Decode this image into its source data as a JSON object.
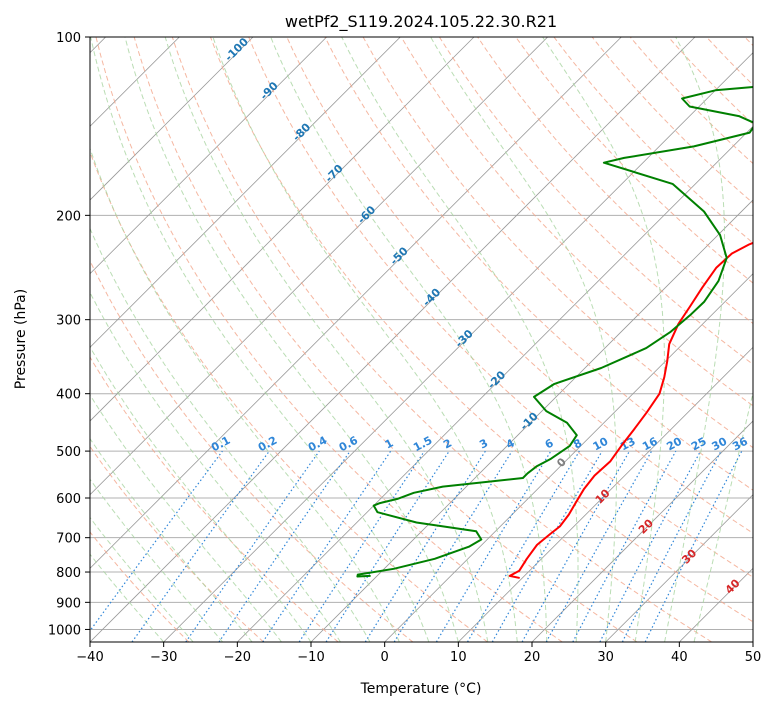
{
  "chart_data": {
    "type": "line",
    "title": "wetPf2_S119.2024.105.22.30.R21",
    "xlabel": "Temperature (°C)",
    "ylabel": "Pressure (hPa)",
    "xlim": [
      -40,
      50
    ],
    "ylim": [
      1050,
      100
    ],
    "y_scale": "log",
    "grid": true,
    "x_ticks": [
      -40,
      -30,
      -20,
      -10,
      0,
      10,
      20,
      30,
      40,
      50
    ],
    "x_tick_labels": [
      "−40",
      "−30",
      "−20",
      "−10",
      "0",
      "10",
      "20",
      "30",
      "40",
      "50"
    ],
    "y_ticks": [
      100,
      200,
      300,
      400,
      500,
      600,
      700,
      800,
      900,
      1000
    ],
    "y_tick_labels": [
      "100",
      "200",
      "300",
      "400",
      "500",
      "600",
      "700",
      "800",
      "900",
      "1000"
    ],
    "series": [
      {
        "role": "temperature",
        "color": "#ff0000",
        "points": [
          [
            9.5,
            818
          ],
          [
            8.0,
            812
          ],
          [
            8.6,
            796
          ],
          [
            8.0,
            760
          ],
          [
            7.5,
            720
          ],
          [
            7.8,
            690
          ],
          [
            8.1,
            670
          ],
          [
            7.7,
            640
          ],
          [
            7.0,
            610
          ],
          [
            6.3,
            580
          ],
          [
            5.9,
            550
          ],
          [
            6.1,
            520
          ],
          [
            5.5,
            490
          ],
          [
            5.0,
            460
          ],
          [
            4.4,
            430
          ],
          [
            3.6,
            400
          ],
          [
            2.0,
            375
          ],
          [
            0.2,
            352
          ],
          [
            -1.8,
            330
          ],
          [
            -3.3,
            305
          ],
          [
            -4.1,
            285
          ],
          [
            -5.0,
            265
          ],
          [
            -5.8,
            245
          ],
          [
            -5.6,
            232
          ],
          [
            -4.5,
            224
          ],
          [
            -2.4,
            215
          ],
          [
            -1.6,
            208
          ],
          [
            -0.9,
            203
          ],
          [
            0.0,
            197
          ],
          [
            0.5,
            192
          ],
          [
            0.6,
            186
          ],
          [
            0.9,
            180
          ],
          [
            0.9,
            173
          ],
          [
            2.6,
            160
          ],
          [
            4.5,
            149
          ],
          [
            5.5,
            140
          ],
          [
            8.0,
            131
          ],
          [
            11.0,
            124
          ],
          [
            11.3,
            120
          ],
          [
            14.0,
            113
          ],
          [
            16.0,
            109
          ],
          [
            22.0,
            100
          ]
        ]
      },
      {
        "role": "dewpoint",
        "color": "#008000",
        "points": [
          [
            -11.0,
            812
          ],
          [
            -12.6,
            814
          ],
          [
            -12.8,
            808
          ],
          [
            -8.7,
            790
          ],
          [
            -4.5,
            760
          ],
          [
            -1.5,
            725
          ],
          [
            -0.8,
            705
          ],
          [
            -2.6,
            683
          ],
          [
            -11.9,
            660
          ],
          [
            -18.6,
            634
          ],
          [
            -20.0,
            618
          ],
          [
            -19.5,
            612
          ],
          [
            -17.7,
            602
          ],
          [
            -16.3,
            588
          ],
          [
            -13.2,
            574
          ],
          [
            -3.5,
            555
          ],
          [
            -3.5,
            545
          ],
          [
            -3.2,
            530
          ],
          [
            -2.3,
            515
          ],
          [
            -1.5,
            490
          ],
          [
            -2.0,
            470
          ],
          [
            -5.0,
            448
          ],
          [
            -9.4,
            428
          ],
          [
            -13.0,
            405
          ],
          [
            -12.0,
            385
          ],
          [
            -7.8,
            362
          ],
          [
            -4.4,
            335
          ],
          [
            -3.3,
            315
          ],
          [
            -2.9,
            295
          ],
          [
            -2.8,
            280
          ],
          [
            -3.7,
            258
          ],
          [
            -5.7,
            236
          ],
          [
            -9.7,
            216
          ],
          [
            -15.1,
            197
          ],
          [
            -23.1,
            177
          ],
          [
            -35.3,
            163
          ],
          [
            -33.2,
            160
          ],
          [
            -25.3,
            153
          ],
          [
            -19.6,
            145
          ],
          [
            -20.0,
            140
          ],
          [
            -23.3,
            136
          ],
          [
            -31.3,
            131
          ],
          [
            -33.4,
            127
          ],
          [
            -30.0,
            123
          ],
          [
            -24.0,
            121
          ],
          [
            -11.0,
            115
          ],
          [
            -8.2,
            109
          ],
          [
            -3.9,
            103
          ],
          [
            -1.5,
            100
          ]
        ]
      }
    ],
    "dry_adiabat_labels": [
      "-100",
      "-90",
      "-80",
      "-70",
      "-60",
      "-50",
      "-40",
      "-30",
      "-20",
      "-10",
      "0",
      "10",
      "20",
      "30",
      "40"
    ],
    "mixing_ratio_labels": [
      "0.1",
      "0.2",
      "0.4",
      "0.6",
      "1",
      "1.5",
      "2",
      "3",
      "4",
      "6",
      "8",
      "10",
      "13",
      "16",
      "20",
      "25",
      "30",
      "36"
    ],
    "colors": {
      "temperature": "#ff0000",
      "dewpoint": "#008000",
      "isotherm": "#999999",
      "isobar": "#b0b0b0",
      "dry_adiabat": "#f3a58a",
      "moist_adiabat": "#a9d4a1",
      "mixing_ratio": "#2f86d8",
      "adiabat_label": "#1f77b4",
      "hot_adiabat_label": "#d62728",
      "zero_label": "#7f7f7f"
    }
  }
}
